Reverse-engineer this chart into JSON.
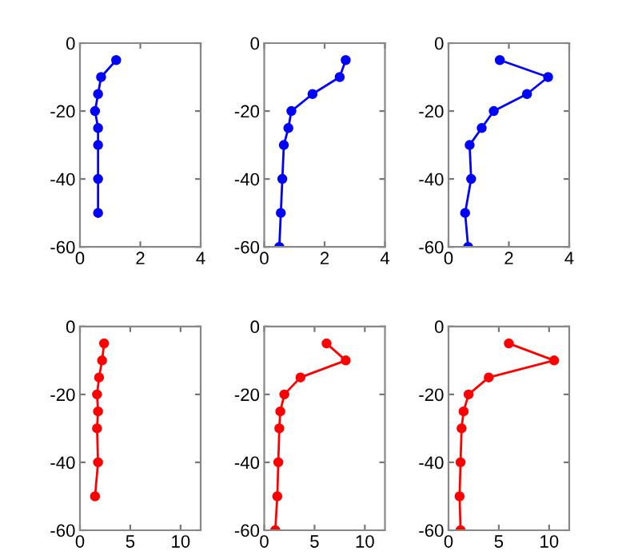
{
  "chart_data": [
    {
      "type": "line",
      "xlim": [
        0,
        4
      ],
      "xticks": [
        0,
        2,
        4
      ],
      "ylim": [
        -60,
        0
      ],
      "yticks": [
        -60,
        -40,
        -20,
        0
      ],
      "marker": "circle",
      "grid": false,
      "series": [
        {
          "color": "#0000ff",
          "x": [
            1.2,
            0.7,
            0.6,
            0.5,
            0.6,
            0.6,
            0.6,
            0.6
          ],
          "values": [
            -5,
            -10,
            -15,
            -20,
            -25,
            -30,
            -40,
            -50
          ]
        }
      ]
    },
    {
      "type": "line",
      "xlim": [
        0,
        4
      ],
      "xticks": [
        0,
        2,
        4
      ],
      "ylim": [
        -60,
        0
      ],
      "yticks": [
        -60,
        -40,
        -20,
        0
      ],
      "marker": "circle",
      "grid": false,
      "series": [
        {
          "color": "#0000ff",
          "x": [
            2.7,
            2.5,
            1.6,
            0.9,
            0.8,
            0.65,
            0.6,
            0.55,
            0.5
          ],
          "values": [
            -5,
            -10,
            -15,
            -20,
            -25,
            -30,
            -40,
            -50,
            -60
          ]
        }
      ]
    },
    {
      "type": "line",
      "xlim": [
        0,
        4
      ],
      "xticks": [
        0,
        2,
        4
      ],
      "ylim": [
        -60,
        0
      ],
      "yticks": [
        -60,
        -40,
        -20,
        0
      ],
      "marker": "circle",
      "grid": false,
      "series": [
        {
          "color": "#0000ff",
          "x": [
            1.7,
            3.3,
            2.6,
            1.5,
            1.1,
            0.7,
            0.75,
            0.55,
            0.65
          ],
          "values": [
            -5,
            -10,
            -15,
            -20,
            -25,
            -30,
            -40,
            -50,
            -60
          ]
        }
      ]
    },
    {
      "type": "line",
      "xlim": [
        0,
        12
      ],
      "xticks": [
        0,
        5,
        10
      ],
      "ylim": [
        -60,
        0
      ],
      "yticks": [
        -60,
        -40,
        -20,
        0
      ],
      "marker": "circle",
      "grid": false,
      "series": [
        {
          "color": "#ff0000",
          "x": [
            2.4,
            2.2,
            1.9,
            1.7,
            1.8,
            1.7,
            1.8,
            1.5
          ],
          "values": [
            -5,
            -10,
            -15,
            -20,
            -25,
            -30,
            -40,
            -50
          ]
        }
      ]
    },
    {
      "type": "line",
      "xlim": [
        0,
        12
      ],
      "xticks": [
        0,
        5,
        10
      ],
      "ylim": [
        -60,
        0
      ],
      "yticks": [
        -60,
        -40,
        -20,
        0
      ],
      "marker": "circle",
      "grid": false,
      "series": [
        {
          "color": "#ff0000",
          "x": [
            6.2,
            8.1,
            3.6,
            2.0,
            1.6,
            1.5,
            1.4,
            1.3,
            1.1
          ],
          "values": [
            -5,
            -10,
            -15,
            -20,
            -25,
            -30,
            -40,
            -50,
            -60
          ]
        }
      ]
    },
    {
      "type": "line",
      "xlim": [
        0,
        12
      ],
      "xticks": [
        0,
        5,
        10
      ],
      "ylim": [
        -60,
        0
      ],
      "yticks": [
        -60,
        -40,
        -20,
        0
      ],
      "marker": "circle",
      "grid": false,
      "series": [
        {
          "color": "#ff0000",
          "x": [
            6.0,
            10.5,
            4.0,
            2.0,
            1.5,
            1.3,
            1.2,
            1.1,
            1.2
          ],
          "values": [
            -5,
            -10,
            -15,
            -20,
            -25,
            -30,
            -40,
            -50,
            -60
          ]
        }
      ]
    }
  ]
}
